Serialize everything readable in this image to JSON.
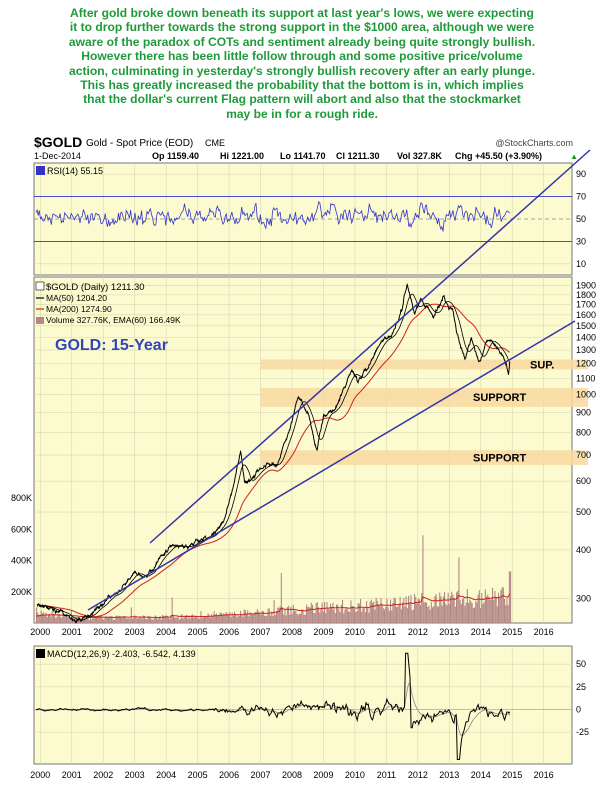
{
  "commentary": [
    "After gold broke down beneath its support at last year's lows, we were expecting",
    "it to drop further towards the strong support in the $1000 area, although we were",
    "aware of the paradox of COTs and sentiment already being quite strongly bullish.",
    "However there has been little follow through and some positive price/volume",
    "action, culminating in yesterday's strongly bullish recovery after an early plunge.",
    "This has greatly increased the probability that the bottom is in, which implies",
    "that the dollar's current Flag pattern will abort and also that the stockmarket",
    "may be in for a rough ride."
  ],
  "header": {
    "symbol": "$GOLD",
    "name": "Gold - Spot Price (EOD)",
    "exchange": "CME",
    "source": "@StockCharts.com",
    "date": "1-Dec-2014",
    "op": "Op 1159.40",
    "hi": "Hi 1221.00",
    "lo": "Lo 1141.70",
    "cl": "Cl 1211.30",
    "vol": "Vol 327.8K",
    "chg": "Chg +45.50 (+3.90%)",
    "chg_arrow": "▲"
  },
  "colors": {
    "panel_bg": "#fbfbcf",
    "grid": "#d8d8b0",
    "rsi": "#3333cc",
    "price": "#000000",
    "ma50": "#000000",
    "ma200": "#cc2222",
    "volume": "#b48888",
    "ema_volume": "#cc2222",
    "trendline": "#3333aa",
    "support_band": "#f8d8a0",
    "annotation": "#3344bb",
    "macd": "#000000",
    "commentary": "#1f9a3a"
  },
  "chart_data": [
    {
      "type": "line",
      "panel": "RSI",
      "legend": "RSI(14) 55.15",
      "levels": [
        10,
        30,
        50,
        70,
        90
      ],
      "ylim": [
        0,
        100
      ],
      "series": [
        {
          "name": "RSI(14)",
          "last": 55.15
        }
      ]
    },
    {
      "type": "line",
      "panel": "Price",
      "scale": "log",
      "ylim": [
        260,
        2000
      ],
      "y_ticks": [
        300,
        400,
        500,
        600,
        700,
        800,
        900,
        1000,
        1100,
        1200,
        1300,
        1400,
        1500,
        1600,
        1700,
        1800,
        1900
      ],
      "vol_ticks": [
        "200K",
        "400K",
        "600K",
        "800K"
      ],
      "x_ticks": [
        "2000",
        "2001",
        "2002",
        "2003",
        "2004",
        "2005",
        "2006",
        "2007",
        "2008",
        "2009",
        "2010",
        "2011",
        "2012",
        "2013",
        "2014",
        "2015",
        "2016"
      ],
      "legend": [
        {
          "label": "$GOLD (Daily) 1211.30"
        },
        {
          "label": "MA(50) 1204.20"
        },
        {
          "label": "MA(200) 1274.90"
        },
        {
          "label": "Volume 327.76K, EMA(60) 166.49K"
        }
      ],
      "annotations": {
        "title": "GOLD: 15-Year",
        "sup": "SUP.",
        "support1": "SUPPORT",
        "support2": "SUPPORT"
      },
      "support_bands": [
        [
          1160,
          1230
        ],
        [
          930,
          1040
        ],
        [
          660,
          720
        ]
      ],
      "price_points": [
        [
          1999.9,
          290
        ],
        [
          2000.3,
          285
        ],
        [
          2000.8,
          275
        ],
        [
          2001.3,
          262
        ],
        [
          2001.7,
          278
        ],
        [
          2002.2,
          300
        ],
        [
          2002.6,
          318
        ],
        [
          2003.0,
          350
        ],
        [
          2003.4,
          340
        ],
        [
          2003.9,
          385
        ],
        [
          2004.2,
          410
        ],
        [
          2004.6,
          400
        ],
        [
          2005.0,
          425
        ],
        [
          2005.4,
          430
        ],
        [
          2005.8,
          470
        ],
        [
          2006.1,
          560
        ],
        [
          2006.37,
          720
        ],
        [
          2006.5,
          590
        ],
        [
          2006.8,
          620
        ],
        [
          2007.2,
          670
        ],
        [
          2007.5,
          660
        ],
        [
          2007.9,
          800
        ],
        [
          2008.2,
          990
        ],
        [
          2008.5,
          900
        ],
        [
          2008.8,
          730
        ],
        [
          2009.0,
          880
        ],
        [
          2009.4,
          920
        ],
        [
          2009.9,
          1150
        ],
        [
          2010.1,
          1080
        ],
        [
          2010.5,
          1230
        ],
        [
          2010.9,
          1380
        ],
        [
          2011.2,
          1430
        ],
        [
          2011.5,
          1620
        ],
        [
          2011.66,
          1900
        ],
        [
          2011.9,
          1600
        ],
        [
          2012.1,
          1750
        ],
        [
          2012.5,
          1580
        ],
        [
          2012.8,
          1780
        ],
        [
          2013.1,
          1650
        ],
        [
          2013.3,
          1400
        ],
        [
          2013.5,
          1230
        ],
        [
          2013.7,
          1400
        ],
        [
          2013.95,
          1220
        ],
        [
          2014.2,
          1380
        ],
        [
          2014.5,
          1310
        ],
        [
          2014.75,
          1230
        ],
        [
          2014.88,
          1145
        ],
        [
          2014.92,
          1211.3
        ]
      ]
    },
    {
      "type": "line",
      "panel": "MACD",
      "legend": "MACD(12,26,9) -2.403, -6.542, 4.139",
      "y_ticks": [
        50,
        25,
        0,
        -25
      ],
      "ylim": [
        -60,
        70
      ],
      "series": [
        {
          "name": "MACD(12,26,9)",
          "values": [
            -2.403,
            -6.542,
            4.139
          ]
        }
      ]
    }
  ]
}
